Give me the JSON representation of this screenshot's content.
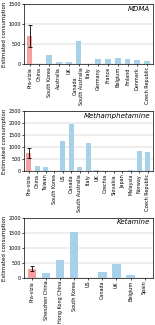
{
  "chart_data": [
    {
      "type": "bar",
      "title": "MDMA",
      "ylabel": "Estimated consumption",
      "categories": [
        "Pra-vizia",
        "China",
        "South Korea",
        "Australia",
        "UK",
        "Canada\nSouth Australia",
        "Italy",
        "Germany",
        "France",
        "Belgium",
        "Finland",
        "Denmark",
        "Czech Republic"
      ],
      "values": [
        700,
        5,
        240,
        55,
        45,
        590,
        10,
        120,
        130,
        155,
        120,
        115,
        90
      ],
      "error": [
        280,
        0,
        0,
        0,
        0,
        0,
        0,
        0,
        0,
        0,
        0,
        0,
        0
      ],
      "colors": [
        "#f4a0a0",
        "#a8d0e8",
        "#a8d0e8",
        "#a8d0e8",
        "#a8d0e8",
        "#a8d0e8",
        "#a8d0e8",
        "#a8d0e8",
        "#a8d0e8",
        "#a8d0e8",
        "#a8d0e8",
        "#a8d0e8",
        "#a8d0e8"
      ],
      "ylim": [
        0,
        1500
      ],
      "yticks": [
        0,
        500,
        1000,
        1500
      ],
      "grid": true
    },
    {
      "type": "bar",
      "title": "Methamphetamine",
      "ylabel": "Estimated consumption",
      "categories": [
        "Pra-vizia",
        "China",
        "Taiwan",
        "South Korea",
        "US",
        "Canada",
        "South Australia",
        "Italy",
        "UK",
        "Czechia",
        "Slovakia",
        "Japan",
        "Malaysia",
        "Norway",
        "Czech Republic"
      ],
      "values": [
        750,
        200,
        175,
        10,
        1270,
        1940,
        155,
        1180,
        45,
        15,
        5,
        5,
        60,
        820,
        780
      ],
      "error": [
        200,
        0,
        0,
        0,
        0,
        0,
        0,
        0,
        0,
        0,
        0,
        0,
        0,
        0,
        0
      ],
      "colors": [
        "#f4a0a0",
        "#a8d0e8",
        "#a8d0e8",
        "#a8d0e8",
        "#a8d0e8",
        "#a8d0e8",
        "#a8d0e8",
        "#a8d0e8",
        "#a8d0e8",
        "#a8d0e8",
        "#a8d0e8",
        "#a8d0e8",
        "#a8d0e8",
        "#a8d0e8",
        "#a8d0e8"
      ],
      "ylim": [
        0,
        2500
      ],
      "yticks": [
        0,
        500,
        1000,
        1500,
        2000,
        2500
      ],
      "grid": true
    },
    {
      "type": "bar",
      "title": "Ketamine",
      "ylabel": "Estimated consumption",
      "categories": [
        "Pra-vizia",
        "Shenzhen China",
        "Hong Kong China",
        "South Korea",
        "US",
        "Canada",
        "UK",
        "Belgium",
        "Spain"
      ],
      "values": [
        310,
        165,
        590,
        1520,
        0,
        200,
        460,
        100,
        5
      ],
      "error": [
        80,
        0,
        0,
        0,
        0,
        0,
        0,
        0,
        0
      ],
      "colors": [
        "#f4a0a0",
        "#a8d0e8",
        "#a8d0e8",
        "#a8d0e8",
        "#a8d0e8",
        "#a8d0e8",
        "#a8d0e8",
        "#a8d0e8",
        "#a8d0e8"
      ],
      "ylim": [
        0,
        2000
      ],
      "yticks": [
        0,
        500,
        1000,
        1500,
        2000
      ],
      "grid": true
    }
  ]
}
